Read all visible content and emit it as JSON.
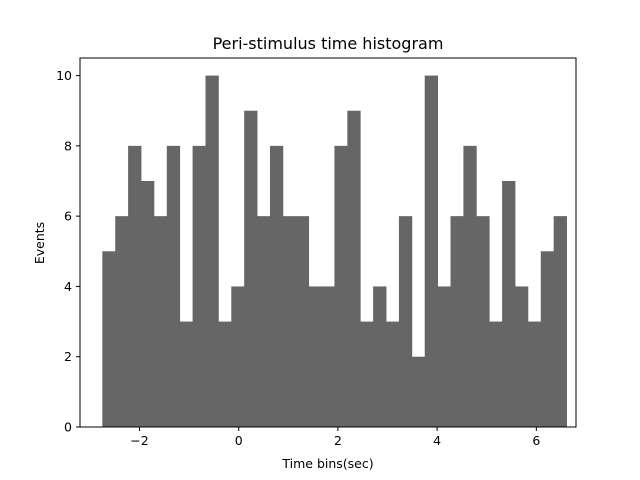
{
  "chart_data": {
    "type": "bar",
    "title": "Peri-stimulus time histogram",
    "xlabel": "Time bins(sec)",
    "ylabel": "Events",
    "xlim": [
      -3.2,
      6.8
    ],
    "ylim": [
      0,
      10.5
    ],
    "xticks": [
      -2,
      0,
      2,
      4,
      6
    ],
    "xtick_labels": [
      "−2",
      "0",
      "2",
      "4",
      "6"
    ],
    "yticks": [
      0,
      2,
      4,
      6,
      8,
      10
    ],
    "ytick_labels": [
      "0",
      "2",
      "4",
      "6",
      "8",
      "10"
    ],
    "grid": false,
    "bar_color": "#666666",
    "bin_start": -2.75,
    "bin_width": 0.26,
    "values": [
      5,
      6,
      8,
      7,
      6,
      8,
      3,
      8,
      10,
      3,
      4,
      9,
      6,
      8,
      6,
      6,
      4,
      4,
      8,
      9,
      3,
      4,
      3,
      6,
      2,
      10,
      4,
      6,
      8,
      6,
      3,
      7,
      4,
      3,
      5,
      6
    ]
  }
}
